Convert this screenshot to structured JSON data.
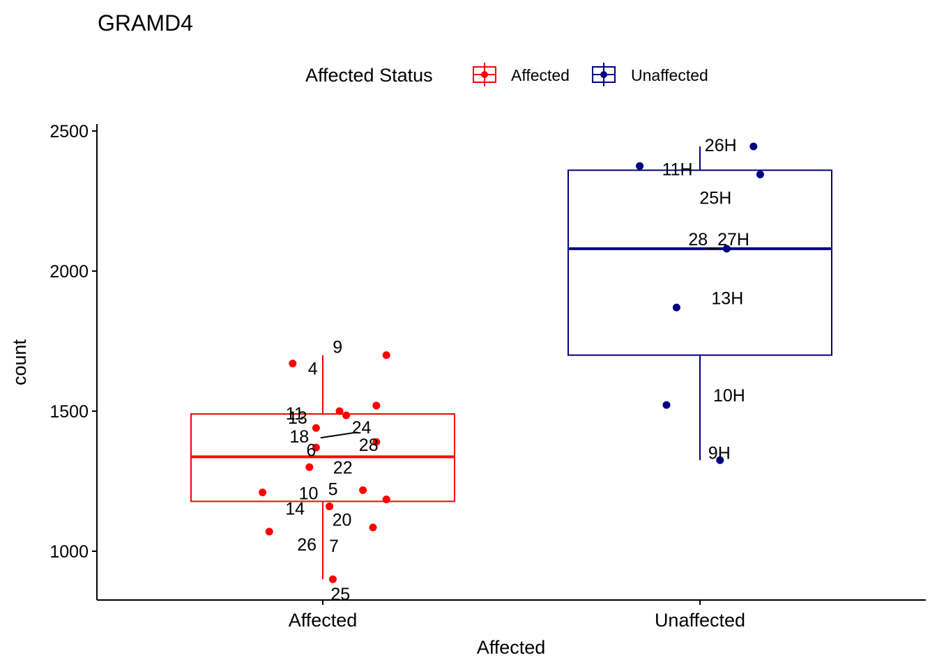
{
  "chart_data": {
    "type": "boxplot",
    "title": "GRAMD4",
    "xlabel": "Affected",
    "ylabel": "count",
    "ylim": [
      825,
      2525
    ],
    "yticks": [
      1000,
      1500,
      2000,
      2500
    ],
    "grid": false,
    "legend": {
      "title": "Affected Status",
      "placement": "top",
      "entries": [
        "Affected",
        "Unaffected"
      ]
    },
    "colors": {
      "Affected": "#ff0000",
      "Unaffected": "#000080"
    },
    "categories": [
      "Affected",
      "Unaffected"
    ],
    "groups": [
      {
        "name": "Affected",
        "color": "#ff0000",
        "box": {
          "min": 900,
          "q1": 1178,
          "median": 1337,
          "q3": 1490,
          "max": 1700
        },
        "points": [
          {
            "label": "9",
            "x": 0.19,
            "y": 1700
          },
          {
            "label": "4",
            "x": -0.09,
            "y": 1670
          },
          {
            "label": "13",
            "x": 0.05,
            "y": 1500
          },
          {
            "label": "11",
            "x": 0.16,
            "y": 1520
          },
          {
            "label": "24",
            "x": 0.07,
            "y": 1485
          },
          {
            "label": "18",
            "x": -0.02,
            "y": 1440
          },
          {
            "label": "28",
            "x": 0.16,
            "y": 1390
          },
          {
            "label": "6",
            "x": -0.02,
            "y": 1370
          },
          {
            "label": "22",
            "x": -0.04,
            "y": 1300
          },
          {
            "label": "5",
            "x": 0.12,
            "y": 1218
          },
          {
            "label": "10",
            "x": -0.18,
            "y": 1210
          },
          {
            "label": "14",
            "x": 0.19,
            "y": 1185
          },
          {
            "label": "20",
            "x": 0.02,
            "y": 1160
          },
          {
            "label": "7",
            "x": 0.15,
            "y": 1085
          },
          {
            "label": "26",
            "x": -0.16,
            "y": 1070
          },
          {
            "label": "25",
            "x": 0.03,
            "y": 900
          }
        ]
      },
      {
        "name": "Unaffected",
        "color": "#000080",
        "box": {
          "min": 1325,
          "q1": 1700,
          "median": 2080,
          "q3": 2360,
          "max": 2445
        },
        "points": [
          {
            "label": "26H",
            "x": 0.16,
            "y": 2445
          },
          {
            "label": "11H",
            "x": -0.18,
            "y": 2375
          },
          {
            "label": "25H",
            "x": 0.18,
            "y": 2345
          },
          {
            "label": "28_27H",
            "x": 0.08,
            "y": 2080
          },
          {
            "label": "13H",
            "x": -0.07,
            "y": 1870
          },
          {
            "label": "10H",
            "x": -0.1,
            "y": 1522
          },
          {
            "label": "9H",
            "x": 0.06,
            "y": 1325
          }
        ]
      }
    ]
  }
}
